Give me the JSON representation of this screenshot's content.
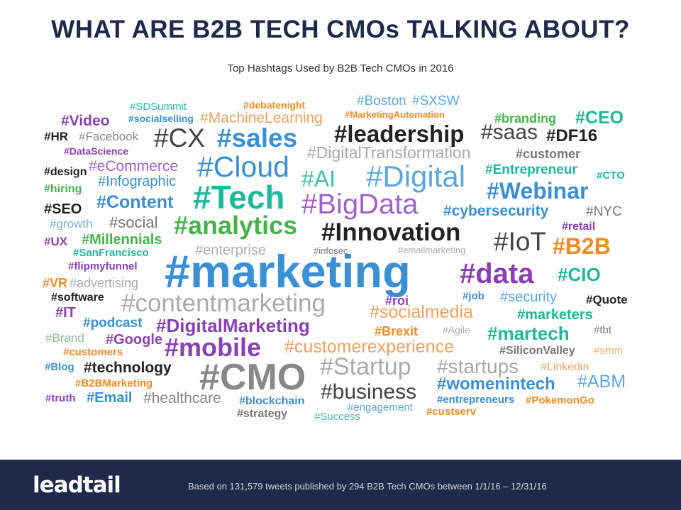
{
  "header": {
    "title": "WHAT ARE B2B TECH CMOs TALKING ABOUT?",
    "subtitle": "Top Hashtags Used by B2B Tech CMOs in 2016"
  },
  "footer": {
    "logo_left": "lead",
    "logo_right": "tail",
    "note": "Based on 131,579 tweets published by 294 B2B Tech CMOs between 1/1/16 – 12/31/16"
  },
  "colors": {
    "navy": "#1f2a4a",
    "purple": "#8a3fb4",
    "orange": "#f08a24",
    "teal": "#1fb89c",
    "green": "#45b34a",
    "blue": "#3a8fd6",
    "gray": "#8a8a8a",
    "dark": "#222222"
  },
  "tags": [
    {
      "t": "#SDSummit",
      "c": "#29b8b0"
    },
    {
      "t": "#debatenight",
      "c": "#f08a24"
    },
    {
      "t": "#Boston",
      "c": "#5aa8e0"
    },
    {
      "t": "#SXSW",
      "c": "#5aa8e0"
    },
    {
      "t": "#Video",
      "c": "#8a3fb4"
    },
    {
      "t": "#socialselling",
      "c": "#3a8fd6"
    },
    {
      "t": "#MachineLearning",
      "c": "#f0a060"
    },
    {
      "t": "#MarketingAutomation",
      "c": "#f08a24"
    },
    {
      "t": "#branding",
      "c": "#45b34a"
    },
    {
      "t": "#CEO",
      "c": "#1fb89c"
    },
    {
      "t": "#HR",
      "c": "#222222"
    },
    {
      "t": "#Facebook",
      "c": "#8a8a8a"
    },
    {
      "t": "#CX",
      "c": "#444444"
    },
    {
      "t": "#sales",
      "c": "#3a8fd6"
    },
    {
      "t": "#leadership",
      "c": "#222222"
    },
    {
      "t": "#saas",
      "c": "#444444"
    },
    {
      "t": "#DF16",
      "c": "#222222"
    },
    {
      "t": "#DataScience",
      "c": "#8a3fb4"
    },
    {
      "t": "#DigitalTransformation",
      "c": "#aaaaaa"
    },
    {
      "t": "#customer",
      "c": "#777777"
    },
    {
      "t": "#eCommerce",
      "c": "#a062c8"
    },
    {
      "t": "#Cloud",
      "c": "#3a8fd6"
    },
    {
      "t": "#design",
      "c": "#222222"
    },
    {
      "t": "#Entrepreneur",
      "c": "#1fb89c"
    },
    {
      "t": "#CTO",
      "c": "#1fb89c"
    },
    {
      "t": "#Infographic",
      "c": "#3a8fd6"
    },
    {
      "t": "#AI",
      "c": "#45c0a0"
    },
    {
      "t": "#Digital",
      "c": "#5aa8e0"
    },
    {
      "t": "#hiring",
      "c": "#45b34a"
    },
    {
      "t": "#Tech",
      "c": "#1fb89c"
    },
    {
      "t": "#Webinar",
      "c": "#3a8fd6"
    },
    {
      "t": "#SEO",
      "c": "#222222"
    },
    {
      "t": "#Content",
      "c": "#3a8fd6"
    },
    {
      "t": "#BigData",
      "c": "#a062c8"
    },
    {
      "t": "#cybersecurity",
      "c": "#3a8fd6"
    },
    {
      "t": "#NYC",
      "c": "#777777"
    },
    {
      "t": "#growth",
      "c": "#7fb0e0"
    },
    {
      "t": "#social",
      "c": "#777777"
    },
    {
      "t": "#analytics",
      "c": "#45b34a"
    },
    {
      "t": "#retail",
      "c": "#8a3fb4"
    },
    {
      "t": "#UX",
      "c": "#8a3fb4"
    },
    {
      "t": "#Millennials",
      "c": "#45b34a"
    },
    {
      "t": "#Innovation",
      "c": "#222222"
    },
    {
      "t": "#IoT",
      "c": "#444444"
    },
    {
      "t": "#B2B",
      "c": "#f08a24"
    },
    {
      "t": "#SanFrancisco",
      "c": "#1fb89c"
    },
    {
      "t": "#enterprise",
      "c": "#b0b0b0"
    },
    {
      "t": "#infosec",
      "c": "#777777"
    },
    {
      "t": "#emailmarketing",
      "c": "#aaaaaa"
    },
    {
      "t": "#flipmyfunnel",
      "c": "#8a3fb4"
    },
    {
      "t": "#marketing",
      "c": "#3a8fd6"
    },
    {
      "t": "#data",
      "c": "#8a3fb4"
    },
    {
      "t": "#CIO",
      "c": "#1fb89c"
    },
    {
      "t": "#VR",
      "c": "#f08a24"
    },
    {
      "t": "#advertising",
      "c": "#aaaaaa"
    },
    {
      "t": "#software",
      "c": "#222222"
    },
    {
      "t": "#roi",
      "c": "#8a3fb4"
    },
    {
      "t": "#job",
      "c": "#3a8fd6"
    },
    {
      "t": "#security",
      "c": "#5aa8e0"
    },
    {
      "t": "#Quote",
      "c": "#222222"
    },
    {
      "t": "#contentmarketing",
      "c": "#aaaaaa"
    },
    {
      "t": "#IT",
      "c": "#8a3fb4"
    },
    {
      "t": "#socialmedia",
      "c": "#f0a060"
    },
    {
      "t": "#marketers",
      "c": "#1fb89c"
    },
    {
      "t": "#podcast",
      "c": "#3a8fd6"
    },
    {
      "t": "#DigitalMarketing",
      "c": "#8a3fb4"
    },
    {
      "t": "#Brexit",
      "c": "#f08a24"
    },
    {
      "t": "#Agile",
      "c": "#aaaaaa"
    },
    {
      "t": "#martech",
      "c": "#1fb89c"
    },
    {
      "t": "#tbt",
      "c": "#777777"
    },
    {
      "t": "#Brand",
      "c": "#8ac090"
    },
    {
      "t": "#Google",
      "c": "#8a3fb4"
    },
    {
      "t": "#customers",
      "c": "#f08a24"
    },
    {
      "t": "#mobile",
      "c": "#8a3fb4"
    },
    {
      "t": "#customerexperience",
      "c": "#f0a060"
    },
    {
      "t": "#SiliconValley",
      "c": "#777777"
    },
    {
      "t": "#smm",
      "c": "#f0b070"
    },
    {
      "t": "#Blog",
      "c": "#3a8fd6"
    },
    {
      "t": "#technology",
      "c": "#222222"
    },
    {
      "t": "#CMO",
      "c": "#888888"
    },
    {
      "t": "#Startup",
      "c": "#aaaaaa"
    },
    {
      "t": "#startups",
      "c": "#aaaaaa"
    },
    {
      "t": "#Linkedin",
      "c": "#f0a060"
    },
    {
      "t": "#B2BMarketing",
      "c": "#f08a24"
    },
    {
      "t": "#womenintech",
      "c": "#3a8fd6"
    },
    {
      "t": "#ABM",
      "c": "#5aa8e0"
    },
    {
      "t": "#truth",
      "c": "#8a3fb4"
    },
    {
      "t": "#Email",
      "c": "#3a8fd6"
    },
    {
      "t": "#healthcare",
      "c": "#888888"
    },
    {
      "t": "#blockchain",
      "c": "#3a8fd6"
    },
    {
      "t": "#business",
      "c": "#444444"
    },
    {
      "t": "#entrepreneurs",
      "c": "#3a8fd6"
    },
    {
      "t": "#PokemonGo",
      "c": "#f08a24"
    },
    {
      "t": "#engagement",
      "c": "#5aa8e0"
    },
    {
      "t": "#strategy",
      "c": "#777777"
    },
    {
      "t": "#Success",
      "c": "#45c0a0"
    },
    {
      "t": "#custserv",
      "c": "#f08a24"
    }
  ]
}
